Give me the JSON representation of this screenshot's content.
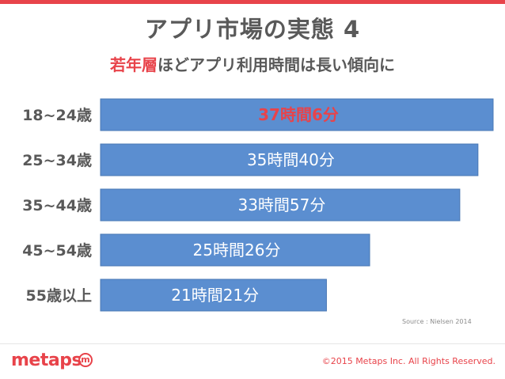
{
  "slide": {
    "title": "アプリ市場の実態 4",
    "subtitle_highlight": "若年層",
    "subtitle_rest": "ほどアプリ利用時間は長い傾向に",
    "source": "Source : Nielsen  2014",
    "copyright": "©2015 Metaps Inc. All Rights Reserved.",
    "logo_text": "metaps",
    "logo_mark": "m"
  },
  "colors": {
    "accent": "#e8434a",
    "bar": "#5b8ed0",
    "bar_border": "#4a78b4",
    "text_gray": "#595959"
  },
  "chart_data": {
    "type": "bar",
    "orientation": "horizontal",
    "categories": [
      "18~24歳",
      "25~34歳",
      "35~44歳",
      "45~54歳",
      "55歳以上"
    ],
    "values": [
      37.1,
      35.667,
      33.95,
      25.433,
      21.35
    ],
    "unit": "hours",
    "data_labels": [
      "37時間6分",
      "35時間40分",
      "33時間57分",
      "25時間26分",
      "21時間21分"
    ],
    "highlight_index": 0,
    "xlim": [
      0,
      37.1
    ],
    "grid": false,
    "legend": "none"
  }
}
